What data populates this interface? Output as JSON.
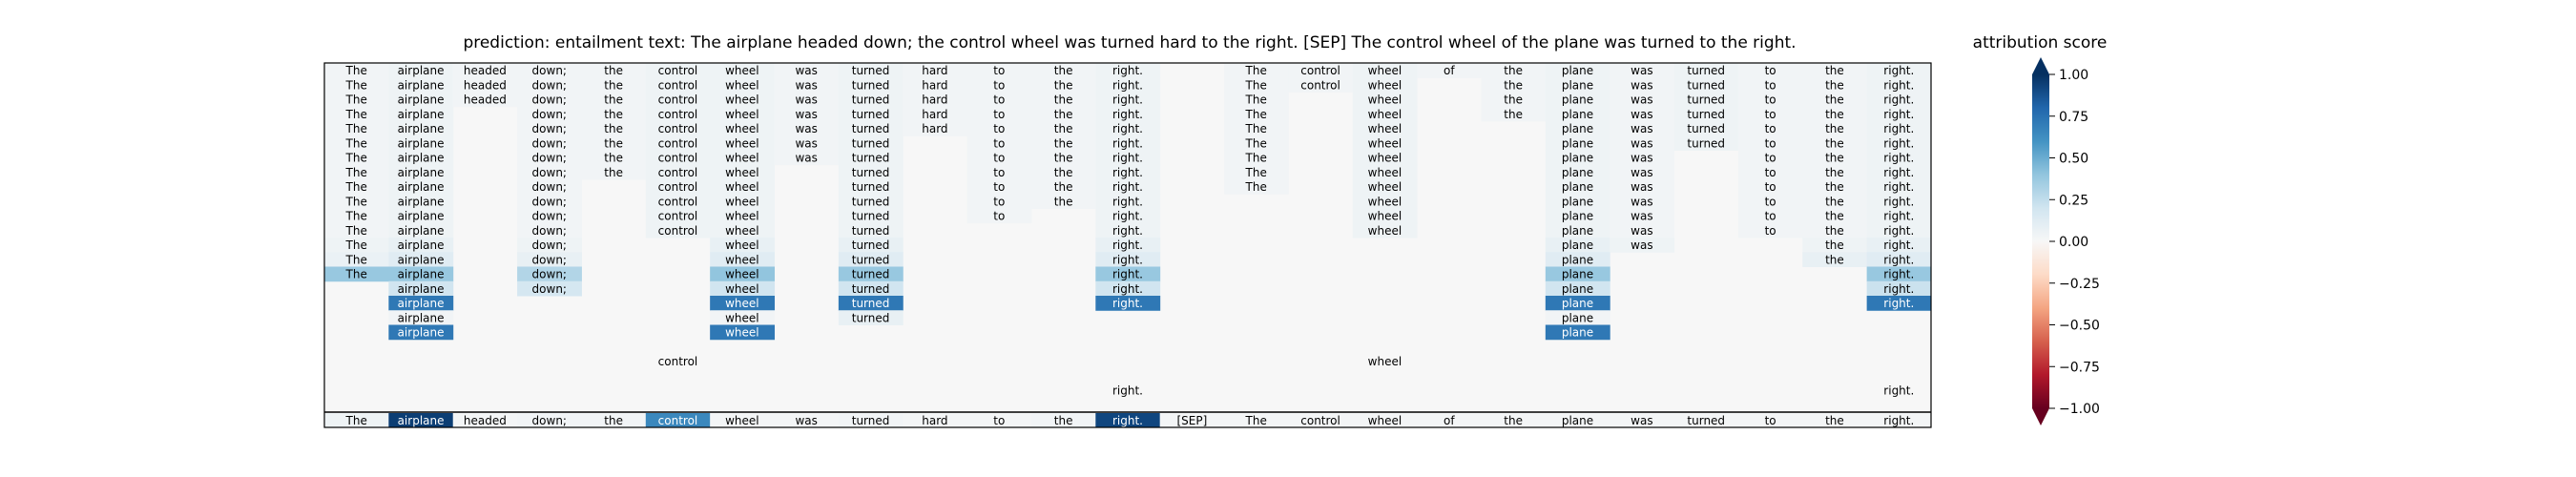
{
  "title": "prediction:  entailment     text:  The airplane headed down; the control wheel was turned hard to the right. [SEP] The control wheel of the plane was turned to the right.",
  "colorbar": {
    "title": "attribution score",
    "ticks": [
      "1.00",
      "0.75",
      "0.50",
      "0.25",
      "0.00",
      "−0.25",
      "−0.50",
      "−0.75",
      "−1.00"
    ],
    "stops": [
      "#67001f",
      "#b2182b",
      "#d6604d",
      "#f4a582",
      "#fddbc7",
      "#f7f7f7",
      "#d1e5f0",
      "#92c5de",
      "#4393c3",
      "#2166ac",
      "#053061"
    ]
  },
  "chart_data": {
    "type": "heatmap",
    "value_range": [
      -1,
      1
    ],
    "tokens": [
      "The",
      "airplane",
      "headed",
      "down;",
      "the",
      "control",
      "wheel",
      "was",
      "turned",
      "hard",
      "to",
      "the",
      "right.",
      "[SEP]",
      "The",
      "control",
      "wheel",
      "of",
      "the",
      "plane",
      "was",
      "turned",
      "to",
      "the",
      "right."
    ],
    "rows": [
      {
        "cells": [
          [
            0,
            0.03
          ],
          [
            1,
            0.05
          ],
          [
            2,
            0.03
          ],
          [
            3,
            0.03
          ],
          [
            4,
            0.03
          ],
          [
            5,
            0.05
          ],
          [
            6,
            0.05
          ],
          [
            7,
            0.03
          ],
          [
            8,
            0.05
          ],
          [
            9,
            0.03
          ],
          [
            10,
            0.03
          ],
          [
            11,
            0.03
          ],
          [
            12,
            0.05
          ],
          [
            14,
            0.03
          ],
          [
            15,
            0.03
          ],
          [
            16,
            0.05
          ],
          [
            17,
            0.03
          ],
          [
            18,
            0.03
          ],
          [
            19,
            0.05
          ],
          [
            20,
            0.03
          ],
          [
            21,
            0.05
          ],
          [
            22,
            0.03
          ],
          [
            23,
            0.03
          ],
          [
            24,
            0.05
          ]
        ]
      },
      {
        "cells": [
          [
            0,
            0.03
          ],
          [
            1,
            0.05
          ],
          [
            2,
            0.03
          ],
          [
            3,
            0.03
          ],
          [
            4,
            0.03
          ],
          [
            5,
            0.05
          ],
          [
            6,
            0.05
          ],
          [
            7,
            0.03
          ],
          [
            8,
            0.05
          ],
          [
            9,
            0.03
          ],
          [
            10,
            0.03
          ],
          [
            11,
            0.03
          ],
          [
            12,
            0.05
          ],
          [
            14,
            0.03
          ],
          [
            15,
            0.03
          ],
          [
            16,
            0.05
          ],
          [
            18,
            0.03
          ],
          [
            19,
            0.05
          ],
          [
            20,
            0.03
          ],
          [
            21,
            0.05
          ],
          [
            22,
            0.03
          ],
          [
            23,
            0.03
          ],
          [
            24,
            0.05
          ]
        ]
      },
      {
        "cells": [
          [
            0,
            0.03
          ],
          [
            1,
            0.05
          ],
          [
            2,
            0.03
          ],
          [
            3,
            0.03
          ],
          [
            4,
            0.03
          ],
          [
            5,
            0.05
          ],
          [
            6,
            0.05
          ],
          [
            7,
            0.03
          ],
          [
            8,
            0.05
          ],
          [
            9,
            0.03
          ],
          [
            10,
            0.03
          ],
          [
            11,
            0.03
          ],
          [
            12,
            0.05
          ],
          [
            14,
            0.03
          ],
          [
            16,
            0.05
          ],
          [
            18,
            0.03
          ],
          [
            19,
            0.05
          ],
          [
            20,
            0.03
          ],
          [
            21,
            0.05
          ],
          [
            22,
            0.03
          ],
          [
            23,
            0.03
          ],
          [
            24,
            0.05
          ]
        ]
      },
      {
        "cells": [
          [
            0,
            0.03
          ],
          [
            1,
            0.05
          ],
          [
            3,
            0.03
          ],
          [
            4,
            0.03
          ],
          [
            5,
            0.05
          ],
          [
            6,
            0.05
          ],
          [
            7,
            0.03
          ],
          [
            8,
            0.05
          ],
          [
            9,
            0.03
          ],
          [
            10,
            0.03
          ],
          [
            11,
            0.03
          ],
          [
            12,
            0.05
          ],
          [
            14,
            0.03
          ],
          [
            16,
            0.05
          ],
          [
            18,
            0.03
          ],
          [
            19,
            0.05
          ],
          [
            20,
            0.03
          ],
          [
            21,
            0.05
          ],
          [
            22,
            0.03
          ],
          [
            23,
            0.03
          ],
          [
            24,
            0.05
          ]
        ]
      },
      {
        "cells": [
          [
            0,
            0.03
          ],
          [
            1,
            0.05
          ],
          [
            3,
            0.03
          ],
          [
            4,
            0.03
          ],
          [
            5,
            0.05
          ],
          [
            6,
            0.05
          ],
          [
            7,
            0.03
          ],
          [
            8,
            0.05
          ],
          [
            9,
            0.03
          ],
          [
            10,
            0.03
          ],
          [
            11,
            0.03
          ],
          [
            12,
            0.05
          ],
          [
            14,
            0.03
          ],
          [
            16,
            0.05
          ],
          [
            19,
            0.05
          ],
          [
            20,
            0.03
          ],
          [
            21,
            0.05
          ],
          [
            22,
            0.03
          ],
          [
            23,
            0.03
          ],
          [
            24,
            0.05
          ]
        ]
      },
      {
        "cells": [
          [
            0,
            0.03
          ],
          [
            1,
            0.05
          ],
          [
            3,
            0.03
          ],
          [
            4,
            0.03
          ],
          [
            5,
            0.05
          ],
          [
            6,
            0.05
          ],
          [
            7,
            0.03
          ],
          [
            8,
            0.05
          ],
          [
            10,
            0.03
          ],
          [
            11,
            0.03
          ],
          [
            12,
            0.05
          ],
          [
            14,
            0.03
          ],
          [
            16,
            0.05
          ],
          [
            19,
            0.05
          ],
          [
            20,
            0.03
          ],
          [
            21,
            0.05
          ],
          [
            22,
            0.03
          ],
          [
            23,
            0.03
          ],
          [
            24,
            0.05
          ]
        ]
      },
      {
        "cells": [
          [
            0,
            0.03
          ],
          [
            1,
            0.05
          ],
          [
            3,
            0.03
          ],
          [
            4,
            0.03
          ],
          [
            5,
            0.05
          ],
          [
            6,
            0.05
          ],
          [
            7,
            0.03
          ],
          [
            8,
            0.05
          ],
          [
            10,
            0.03
          ],
          [
            11,
            0.03
          ],
          [
            12,
            0.05
          ],
          [
            14,
            0.03
          ],
          [
            16,
            0.05
          ],
          [
            19,
            0.05
          ],
          [
            20,
            0.03
          ],
          [
            22,
            0.03
          ],
          [
            23,
            0.03
          ],
          [
            24,
            0.05
          ]
        ]
      },
      {
        "cells": [
          [
            0,
            0.03
          ],
          [
            1,
            0.05
          ],
          [
            3,
            0.03
          ],
          [
            4,
            0.03
          ],
          [
            5,
            0.05
          ],
          [
            6,
            0.05
          ],
          [
            8,
            0.05
          ],
          [
            10,
            0.03
          ],
          [
            11,
            0.03
          ],
          [
            12,
            0.05
          ],
          [
            14,
            0.03
          ],
          [
            16,
            0.05
          ],
          [
            19,
            0.05
          ],
          [
            20,
            0.03
          ],
          [
            22,
            0.03
          ],
          [
            23,
            0.03
          ],
          [
            24,
            0.05
          ]
        ]
      },
      {
        "cells": [
          [
            0,
            0.03
          ],
          [
            1,
            0.05
          ],
          [
            3,
            0.03
          ],
          [
            5,
            0.05
          ],
          [
            6,
            0.05
          ],
          [
            8,
            0.05
          ],
          [
            10,
            0.03
          ],
          [
            11,
            0.03
          ],
          [
            12,
            0.05
          ],
          [
            14,
            0.03
          ],
          [
            16,
            0.05
          ],
          [
            19,
            0.05
          ],
          [
            20,
            0.03
          ],
          [
            22,
            0.03
          ],
          [
            23,
            0.03
          ],
          [
            24,
            0.05
          ]
        ]
      },
      {
        "cells": [
          [
            0,
            0.03
          ],
          [
            1,
            0.05
          ],
          [
            3,
            0.03
          ],
          [
            5,
            0.05
          ],
          [
            6,
            0.05
          ],
          [
            8,
            0.05
          ],
          [
            10,
            0.03
          ],
          [
            11,
            0.03
          ],
          [
            12,
            0.05
          ],
          [
            16,
            0.05
          ],
          [
            19,
            0.05
          ],
          [
            20,
            0.03
          ],
          [
            22,
            0.03
          ],
          [
            23,
            0.03
          ],
          [
            24,
            0.05
          ]
        ]
      },
      {
        "cells": [
          [
            0,
            0.03
          ],
          [
            1,
            0.05
          ],
          [
            3,
            0.03
          ],
          [
            5,
            0.05
          ],
          [
            6,
            0.05
          ],
          [
            8,
            0.05
          ],
          [
            10,
            0.03
          ],
          [
            12,
            0.05
          ],
          [
            16,
            0.05
          ],
          [
            19,
            0.05
          ],
          [
            20,
            0.03
          ],
          [
            22,
            0.03
          ],
          [
            23,
            0.03
          ],
          [
            24,
            0.05
          ]
        ]
      },
      {
        "cells": [
          [
            0,
            0.03
          ],
          [
            1,
            0.05
          ],
          [
            3,
            0.03
          ],
          [
            5,
            0.05
          ],
          [
            6,
            0.05
          ],
          [
            8,
            0.05
          ],
          [
            12,
            0.05
          ],
          [
            16,
            0.05
          ],
          [
            19,
            0.05
          ],
          [
            20,
            0.03
          ],
          [
            22,
            0.03
          ],
          [
            23,
            0.03
          ],
          [
            24,
            0.05
          ]
        ]
      },
      {
        "cells": [
          [
            0,
            0.05
          ],
          [
            1,
            0.08
          ],
          [
            3,
            0.05
          ],
          [
            6,
            0.08
          ],
          [
            8,
            0.08
          ],
          [
            12,
            0.08
          ],
          [
            19,
            0.08
          ],
          [
            20,
            0.05
          ],
          [
            23,
            0.05
          ],
          [
            24,
            0.08
          ]
        ]
      },
      {
        "cells": [
          [
            0,
            0.07
          ],
          [
            1,
            0.12
          ],
          [
            3,
            0.08
          ],
          [
            6,
            0.12
          ],
          [
            8,
            0.12
          ],
          [
            12,
            0.12
          ],
          [
            19,
            0.12
          ],
          [
            23,
            0.08
          ],
          [
            24,
            0.12
          ]
        ]
      },
      {
        "cells": [
          [
            0,
            0.38
          ],
          [
            1,
            0.38
          ],
          [
            3,
            0.3
          ],
          [
            6,
            0.4
          ],
          [
            8,
            0.38
          ],
          [
            12,
            0.38
          ],
          [
            19,
            0.38
          ],
          [
            24,
            0.38
          ]
        ]
      },
      {
        "cells": [
          [
            1,
            0.2
          ],
          [
            3,
            0.18
          ],
          [
            6,
            0.2
          ],
          [
            8,
            0.2
          ],
          [
            12,
            0.2
          ],
          [
            19,
            0.2
          ],
          [
            24,
            0.22
          ]
        ]
      },
      {
        "cells": [
          [
            1,
            0.72
          ],
          [
            6,
            0.72
          ],
          [
            8,
            0.72
          ],
          [
            12,
            0.72
          ],
          [
            19,
            0.72
          ],
          [
            24,
            0.72
          ]
        ]
      },
      {
        "cells": [
          [
            1,
            0.03
          ],
          [
            6,
            0.03
          ],
          [
            8,
            0.08
          ],
          [
            19,
            0.03
          ]
        ]
      },
      {
        "cells": [
          [
            1,
            0.72
          ],
          [
            6,
            0.72
          ],
          [
            19,
            0.72
          ]
        ]
      },
      {
        "cells": []
      },
      {
        "cells": [
          [
            5,
            0
          ],
          [
            16,
            0
          ]
        ]
      },
      {
        "cells": []
      },
      {
        "cells": [
          [
            12,
            0
          ],
          [
            24,
            0
          ]
        ]
      },
      {
        "cells": []
      },
      {
        "cells": [
          [
            1,
            0
          ],
          [
            19,
            0
          ]
        ]
      },
      {
        "cells": []
      }
    ],
    "final_row": [
      0.05,
      0.95,
      0.02,
      0.03,
      0.03,
      0.65,
      0.02,
      0.02,
      0.03,
      0.02,
      0.02,
      0.03,
      0.92,
      0.02,
      0.02,
      0.02,
      0.02,
      0.02,
      0.02,
      0.02,
      0.02,
      0.02,
      0.02,
      0.02,
      0.02
    ]
  }
}
